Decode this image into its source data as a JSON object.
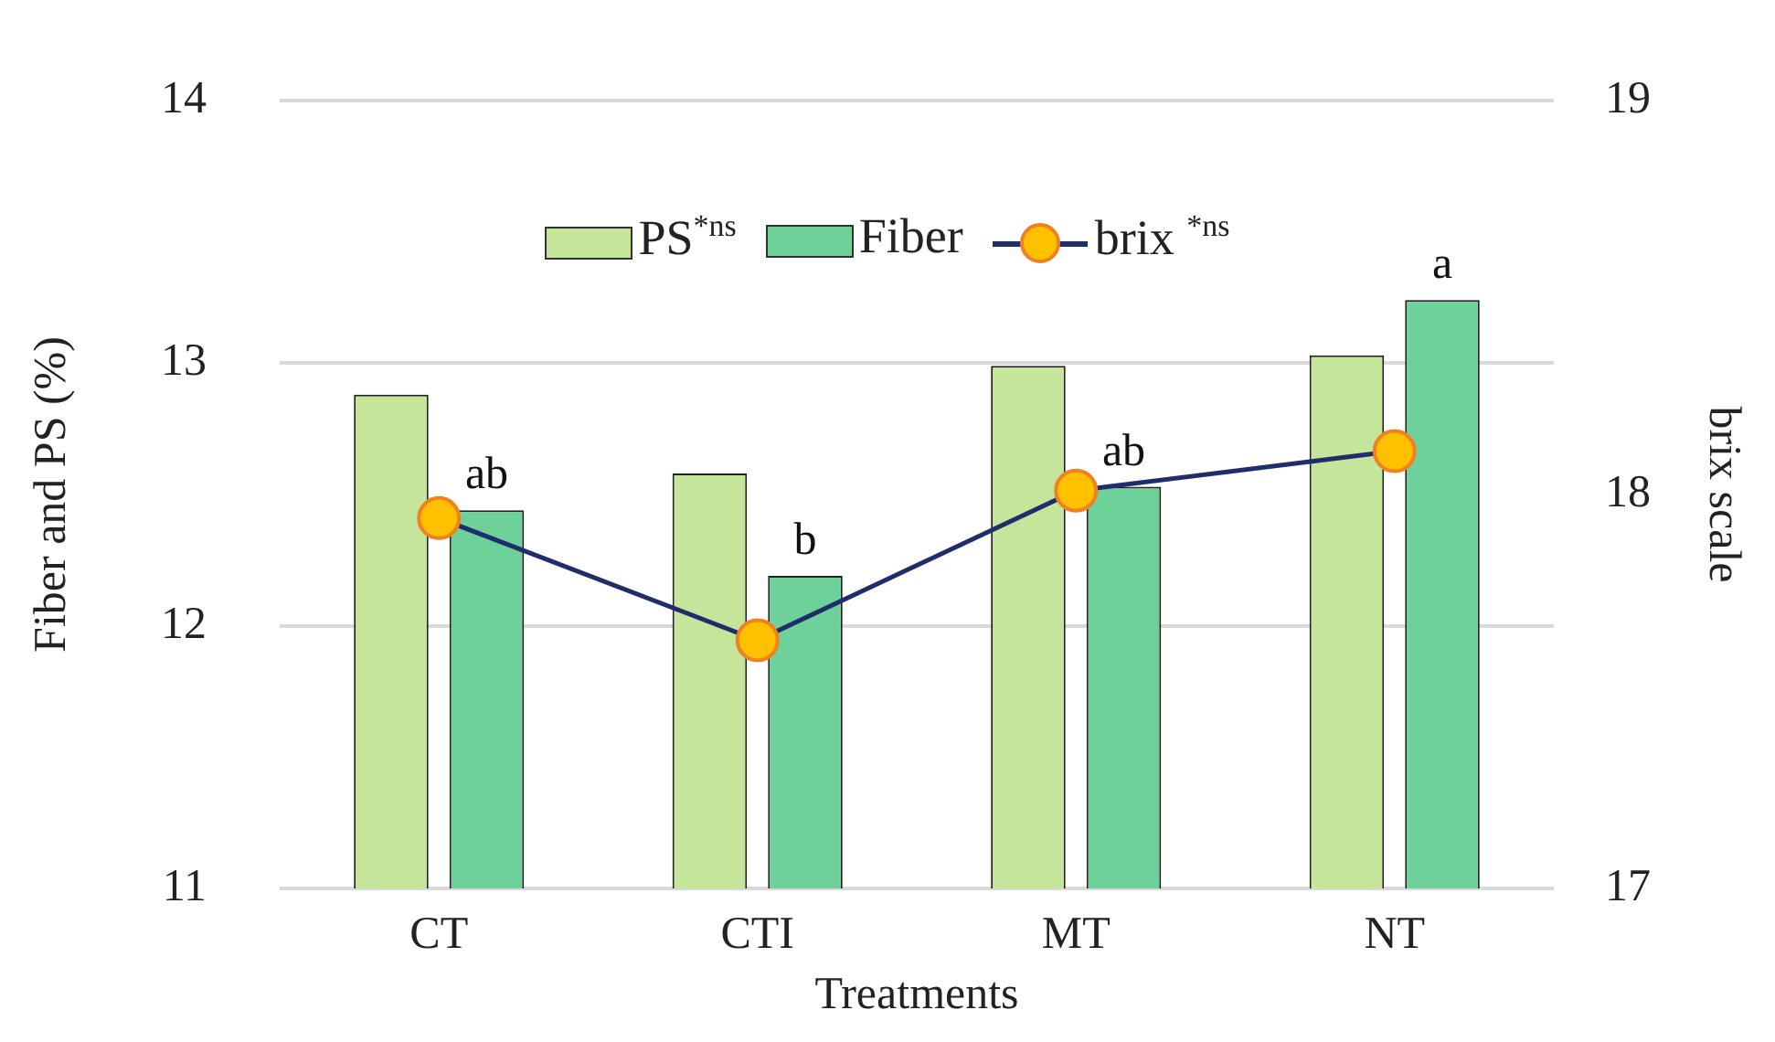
{
  "chart_data": {
    "type": "bar",
    "xlabel": "Treatments",
    "ylabel": "Fiber and PS (%)",
    "y2label": "brix scale",
    "categories": [
      "CT",
      "CTI",
      "MT",
      "NT"
    ],
    "series": [
      {
        "name": "PS$^{*ns}$",
        "color": "#c5e59b",
        "values": [
          12.88,
          12.58,
          12.99,
          13.03
        ]
      },
      {
        "name": "Fiber",
        "color": "#6fd19a",
        "values": [
          12.44,
          12.19,
          12.53,
          13.24
        ],
        "value_labels": [
          "ab",
          "b",
          "ab",
          "a"
        ]
      },
      {
        "name": "brix $^{*ns}$",
        "type": "line",
        "axis": "y2",
        "color": "#1f2d6b",
        "values": [
          17.94,
          17.63,
          18.01,
          18.11
        ]
      }
    ],
    "ylim": [
      11,
      14
    ],
    "yticks": [
      11,
      12,
      13,
      14
    ],
    "y2lim": [
      17,
      19
    ],
    "y2ticks": [
      17,
      18,
      19
    ],
    "grid": "y",
    "legend": "top",
    "marker": "circle",
    "line_style": "solid"
  }
}
